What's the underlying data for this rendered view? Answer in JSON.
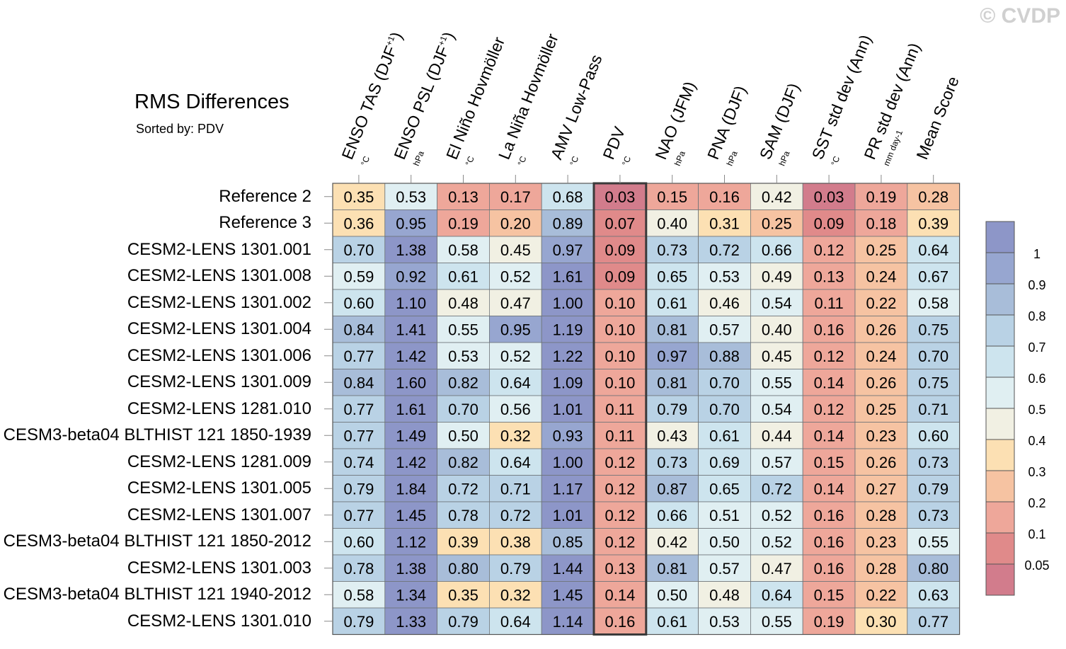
{
  "watermark": "© CVDP",
  "title": "RMS Differences",
  "subtitle": "Sorted by: PDV",
  "chart_data": {
    "type": "heatmap",
    "title": "RMS Differences",
    "subtitle": "Sorted by: PDV",
    "highlighted_column": "PDV",
    "columns": [
      {
        "name": "ENSO TAS (DJF+1)",
        "label_main": "ENSO TAS (DJF",
        "label_sup": "+1",
        "label_tail": ")",
        "unit": "°C"
      },
      {
        "name": "ENSO PSL (DJF+1)",
        "label_main": "ENSO PSL (DJF",
        "label_sup": "+1",
        "label_tail": ")",
        "unit": "hPa"
      },
      {
        "name": "El Niño Hovmöller",
        "label_main": "El Niño Hovmöller",
        "label_sup": "",
        "label_tail": "",
        "unit": "°C"
      },
      {
        "name": "La Niña Hovmöller",
        "label_main": "La Niña Hovmöller",
        "label_sup": "",
        "label_tail": "",
        "unit": "°C"
      },
      {
        "name": "AMV Low-Pass",
        "label_main": "AMV Low-Pass",
        "label_sup": "",
        "label_tail": "",
        "unit": "°C"
      },
      {
        "name": "PDV",
        "label_main": "PDV",
        "label_sup": "",
        "label_tail": "",
        "unit": "°C"
      },
      {
        "name": "NAO (JFM)",
        "label_main": "NAO (JFM)",
        "label_sup": "",
        "label_tail": "",
        "unit": "hPa"
      },
      {
        "name": "PNA (DJF)",
        "label_main": "PNA (DJF)",
        "label_sup": "",
        "label_tail": "",
        "unit": "hPa"
      },
      {
        "name": "SAM (DJF)",
        "label_main": "SAM (DJF)",
        "label_sup": "",
        "label_tail": "",
        "unit": "hPa"
      },
      {
        "name": "SST std dev (Ann)",
        "label_main": "SST std dev (Ann)",
        "label_sup": "",
        "label_tail": "",
        "unit": "°C"
      },
      {
        "name": "PR std dev (Ann)",
        "label_main": "PR std dev (Ann)",
        "label_sup": "",
        "label_tail": "",
        "unit": "mm day-1"
      },
      {
        "name": "Mean Score",
        "label_main": "Mean Score",
        "label_sup": "",
        "label_tail": "",
        "unit": ""
      }
    ],
    "rows": [
      {
        "name": "Reference 2",
        "values": [
          0.35,
          0.53,
          0.13,
          0.17,
          0.68,
          0.03,
          0.15,
          0.16,
          0.42,
          0.03,
          0.19,
          0.28
        ]
      },
      {
        "name": "Reference 3",
        "values": [
          0.36,
          0.95,
          0.19,
          0.2,
          0.89,
          0.07,
          0.4,
          0.31,
          0.25,
          0.09,
          0.18,
          0.39
        ]
      },
      {
        "name": "CESM2-LENS 1301.001",
        "values": [
          0.7,
          1.38,
          0.58,
          0.45,
          0.97,
          0.09,
          0.73,
          0.72,
          0.66,
          0.12,
          0.25,
          0.64
        ]
      },
      {
        "name": "CESM2-LENS 1301.008",
        "values": [
          0.59,
          0.92,
          0.61,
          0.52,
          1.61,
          0.09,
          0.65,
          0.53,
          0.49,
          0.13,
          0.24,
          0.67
        ]
      },
      {
        "name": "CESM2-LENS 1301.002",
        "values": [
          0.6,
          1.1,
          0.48,
          0.47,
          1.0,
          0.1,
          0.61,
          0.46,
          0.54,
          0.11,
          0.22,
          0.58
        ]
      },
      {
        "name": "CESM2-LENS 1301.004",
        "values": [
          0.84,
          1.41,
          0.55,
          0.95,
          1.19,
          0.1,
          0.81,
          0.57,
          0.4,
          0.16,
          0.26,
          0.75
        ]
      },
      {
        "name": "CESM2-LENS 1301.006",
        "values": [
          0.77,
          1.42,
          0.53,
          0.52,
          1.22,
          0.1,
          0.97,
          0.88,
          0.45,
          0.12,
          0.24,
          0.7
        ]
      },
      {
        "name": "CESM2-LENS 1301.009",
        "values": [
          0.84,
          1.6,
          0.82,
          0.64,
          1.09,
          0.1,
          0.81,
          0.7,
          0.55,
          0.14,
          0.26,
          0.75
        ]
      },
      {
        "name": "CESM2-LENS 1281.010",
        "values": [
          0.77,
          1.61,
          0.7,
          0.56,
          1.01,
          0.11,
          0.79,
          0.7,
          0.54,
          0.12,
          0.25,
          0.71
        ]
      },
      {
        "name": "CESM3-beta04 BLTHIST 121 1850-1939",
        "values": [
          0.77,
          1.49,
          0.5,
          0.32,
          0.93,
          0.11,
          0.43,
          0.61,
          0.44,
          0.14,
          0.23,
          0.6
        ]
      },
      {
        "name": "CESM2-LENS 1281.009",
        "values": [
          0.74,
          1.42,
          0.82,
          0.64,
          1.0,
          0.12,
          0.73,
          0.69,
          0.57,
          0.15,
          0.26,
          0.73
        ]
      },
      {
        "name": "CESM2-LENS 1301.005",
        "values": [
          0.79,
          1.84,
          0.72,
          0.71,
          1.17,
          0.12,
          0.87,
          0.65,
          0.72,
          0.14,
          0.27,
          0.79
        ]
      },
      {
        "name": "CESM2-LENS 1301.007",
        "values": [
          0.77,
          1.45,
          0.78,
          0.72,
          1.01,
          0.12,
          0.66,
          0.51,
          0.52,
          0.16,
          0.28,
          0.73
        ]
      },
      {
        "name": "CESM3-beta04 BLTHIST 121 1850-2012",
        "values": [
          0.6,
          1.12,
          0.39,
          0.38,
          0.85,
          0.12,
          0.42,
          0.5,
          0.52,
          0.16,
          0.23,
          0.55
        ]
      },
      {
        "name": "CESM2-LENS 1301.003",
        "values": [
          0.78,
          1.38,
          0.8,
          0.79,
          1.44,
          0.13,
          0.81,
          0.57,
          0.47,
          0.16,
          0.28,
          0.8
        ]
      },
      {
        "name": "CESM3-beta04 BLTHIST 121 1940-2012",
        "values": [
          0.58,
          1.34,
          0.35,
          0.32,
          1.45,
          0.14,
          0.5,
          0.48,
          0.64,
          0.15,
          0.22,
          0.63
        ]
      },
      {
        "name": "CESM2-LENS 1301.010",
        "values": [
          0.79,
          1.33,
          0.79,
          0.64,
          1.14,
          0.16,
          0.61,
          0.53,
          0.55,
          0.19,
          0.3,
          0.77
        ]
      }
    ],
    "colorbar": {
      "labels": [
        "1",
        "0.9",
        "0.8",
        "0.7",
        "0.6",
        "0.5",
        "0.4",
        "0.3",
        "0.2",
        "0.1",
        "0.05"
      ],
      "thresholds": [
        0.05,
        0.1,
        0.2,
        0.3,
        0.4,
        0.5,
        0.6,
        0.7,
        0.8,
        0.9,
        1.0
      ],
      "colors": [
        "#d27c8c",
        "#e08a8a",
        "#eea79a",
        "#f6c3a2",
        "#fce0b3",
        "#f1f0e3",
        "#e0eff2",
        "#cde4ee",
        "#b9d2e5",
        "#a8bdd9",
        "#97a6d0",
        "#8d96c8"
      ]
    }
  }
}
